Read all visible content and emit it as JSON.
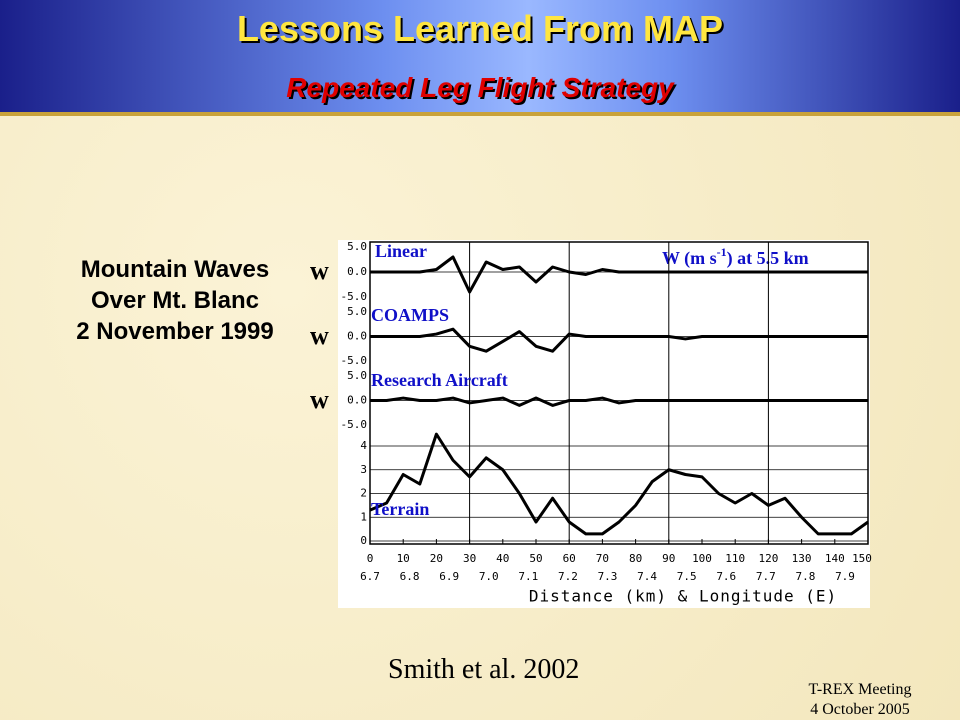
{
  "header": {
    "title": "Lessons Learned From MAP",
    "subtitle": "Repeated Leg Flight Strategy"
  },
  "caption": {
    "lines": [
      "Mountain Waves",
      "Over Mt. Blanc",
      "2 November 1999"
    ]
  },
  "w_labels": [
    "w",
    "w",
    "w"
  ],
  "figure": {
    "xlim": [
      0,
      150
    ],
    "xticks": [
      0,
      10,
      20,
      30,
      40,
      50,
      60,
      70,
      80,
      90,
      100,
      110,
      120,
      130,
      140,
      150
    ],
    "lon_labels": [
      "6.7",
      "6.8",
      "6.9",
      "7.0",
      "7.1",
      "7.2",
      "7.3",
      "7.4",
      "7.5",
      "7.6",
      "7.7",
      "7.8",
      "7.9"
    ],
    "xlabel": "Distance (km) & Longitude (E)",
    "vgrid": [
      30,
      60,
      90,
      120
    ],
    "field_label": {
      "before": "W (m s",
      "sup": "-1",
      "after": ") at 5.5 km"
    },
    "x": [
      0,
      5,
      10,
      15,
      20,
      25,
      30,
      35,
      40,
      45,
      50,
      55,
      60,
      65,
      70,
      75,
      80,
      85,
      90,
      95,
      100,
      105,
      110,
      115,
      120,
      125,
      130,
      135,
      140,
      145,
      150
    ],
    "panels": [
      {
        "label": "Linear",
        "ylim": [
          -5,
          5
        ],
        "yticks": [
          {
            "value": 5,
            "label": "5.0"
          },
          {
            "value": 0,
            "label": "0.0"
          },
          {
            "value": -5,
            "label": "-5.0"
          }
        ],
        "values": [
          0,
          0,
          0,
          0,
          0.5,
          3,
          -4,
          2,
          0.5,
          1,
          -2,
          1,
          0,
          -0.5,
          0.5,
          0,
          0,
          0,
          0,
          0,
          0,
          0,
          0,
          0,
          0,
          0,
          0,
          0,
          0,
          0,
          0
        ]
      },
      {
        "label": "COAMPS",
        "ylim": [
          -5,
          5
        ],
        "yticks": [
          {
            "value": 5,
            "label": "5.0"
          },
          {
            "value": 0,
            "label": "0.0"
          },
          {
            "value": -5,
            "label": "-5.0"
          }
        ],
        "values": [
          0,
          0,
          0,
          0,
          0.5,
          1.5,
          -2,
          -3,
          -1,
          1,
          -2,
          -3,
          0.5,
          0,
          0,
          0,
          0,
          0,
          0,
          -0.5,
          0,
          0,
          0,
          0,
          0,
          0,
          0,
          0,
          0,
          0,
          0
        ]
      },
      {
        "label": "Research Aircraft",
        "ylim": [
          -5,
          5
        ],
        "yticks": [
          {
            "value": 5,
            "label": "5.0"
          },
          {
            "value": 0,
            "label": "0.0"
          },
          {
            "value": -5,
            "label": "-5.0"
          }
        ],
        "values": [
          0,
          0,
          0.5,
          0,
          0,
          0.5,
          -0.5,
          0,
          0.5,
          -1,
          0.5,
          -1,
          0,
          0,
          0.5,
          -0.5,
          0,
          0,
          0,
          0,
          0,
          0,
          0,
          0,
          0,
          0,
          0,
          0,
          0,
          0,
          0
        ]
      },
      {
        "label": "Terrain",
        "ylim": [
          0,
          4
        ],
        "yticks": [
          4,
          3,
          2,
          1,
          0
        ],
        "values": [
          1.3,
          1.6,
          2.8,
          2.4,
          4.5,
          3.4,
          2.7,
          3.5,
          3.0,
          2.0,
          0.8,
          1.8,
          0.8,
          0.3,
          0.3,
          0.8,
          1.5,
          2.5,
          3.0,
          2.8,
          2.7,
          2.0,
          1.6,
          2.0,
          1.5,
          1.8,
          1.0,
          0.3,
          0.3,
          0.3,
          0.8
        ]
      }
    ]
  },
  "citation": "Smith et al. 2002",
  "footer": {
    "lines": [
      "T-REX Meeting",
      "4 October 2005"
    ]
  }
}
